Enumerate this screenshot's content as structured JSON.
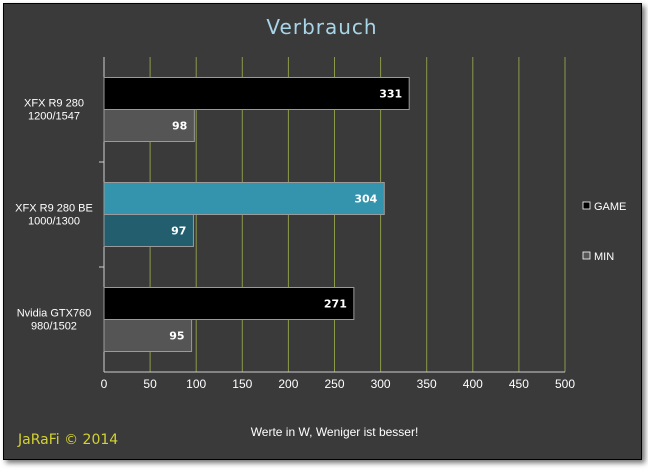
{
  "chart_data": {
    "type": "bar",
    "orientation": "horizontal",
    "title": "Verbrauch",
    "xlabel": "Werte in W, Weniger ist besser!",
    "ylabel": "",
    "xlim": [
      0,
      500
    ],
    "x_ticks": [
      "0",
      "50",
      "100",
      "150",
      "200",
      "250",
      "300",
      "350",
      "400",
      "450",
      "500"
    ],
    "grid": "vertical",
    "legend_position": "right",
    "categories": [
      [
        "XFX R9 280",
        "1200/1547"
      ],
      [
        "XFX R9 280 BE",
        "1000/1300"
      ],
      [
        "Nvidia GTX760",
        "980/1502"
      ]
    ],
    "series": [
      {
        "name": "GAME",
        "values": [
          331,
          304,
          271
        ],
        "color": "#000000"
      },
      {
        "name": "MIN",
        "values": [
          98,
          97,
          95
        ],
        "color": "#555555"
      }
    ],
    "highlight": {
      "category_index": 1,
      "colors": [
        "#3494ad",
        "#225e6e"
      ]
    },
    "colors": {
      "background": "#3a3a3a",
      "grid": "#8a9a4a",
      "title": "#a9d5e8",
      "credit": "#d4d232"
    }
  },
  "credit": "JaRaFi  © 2014"
}
